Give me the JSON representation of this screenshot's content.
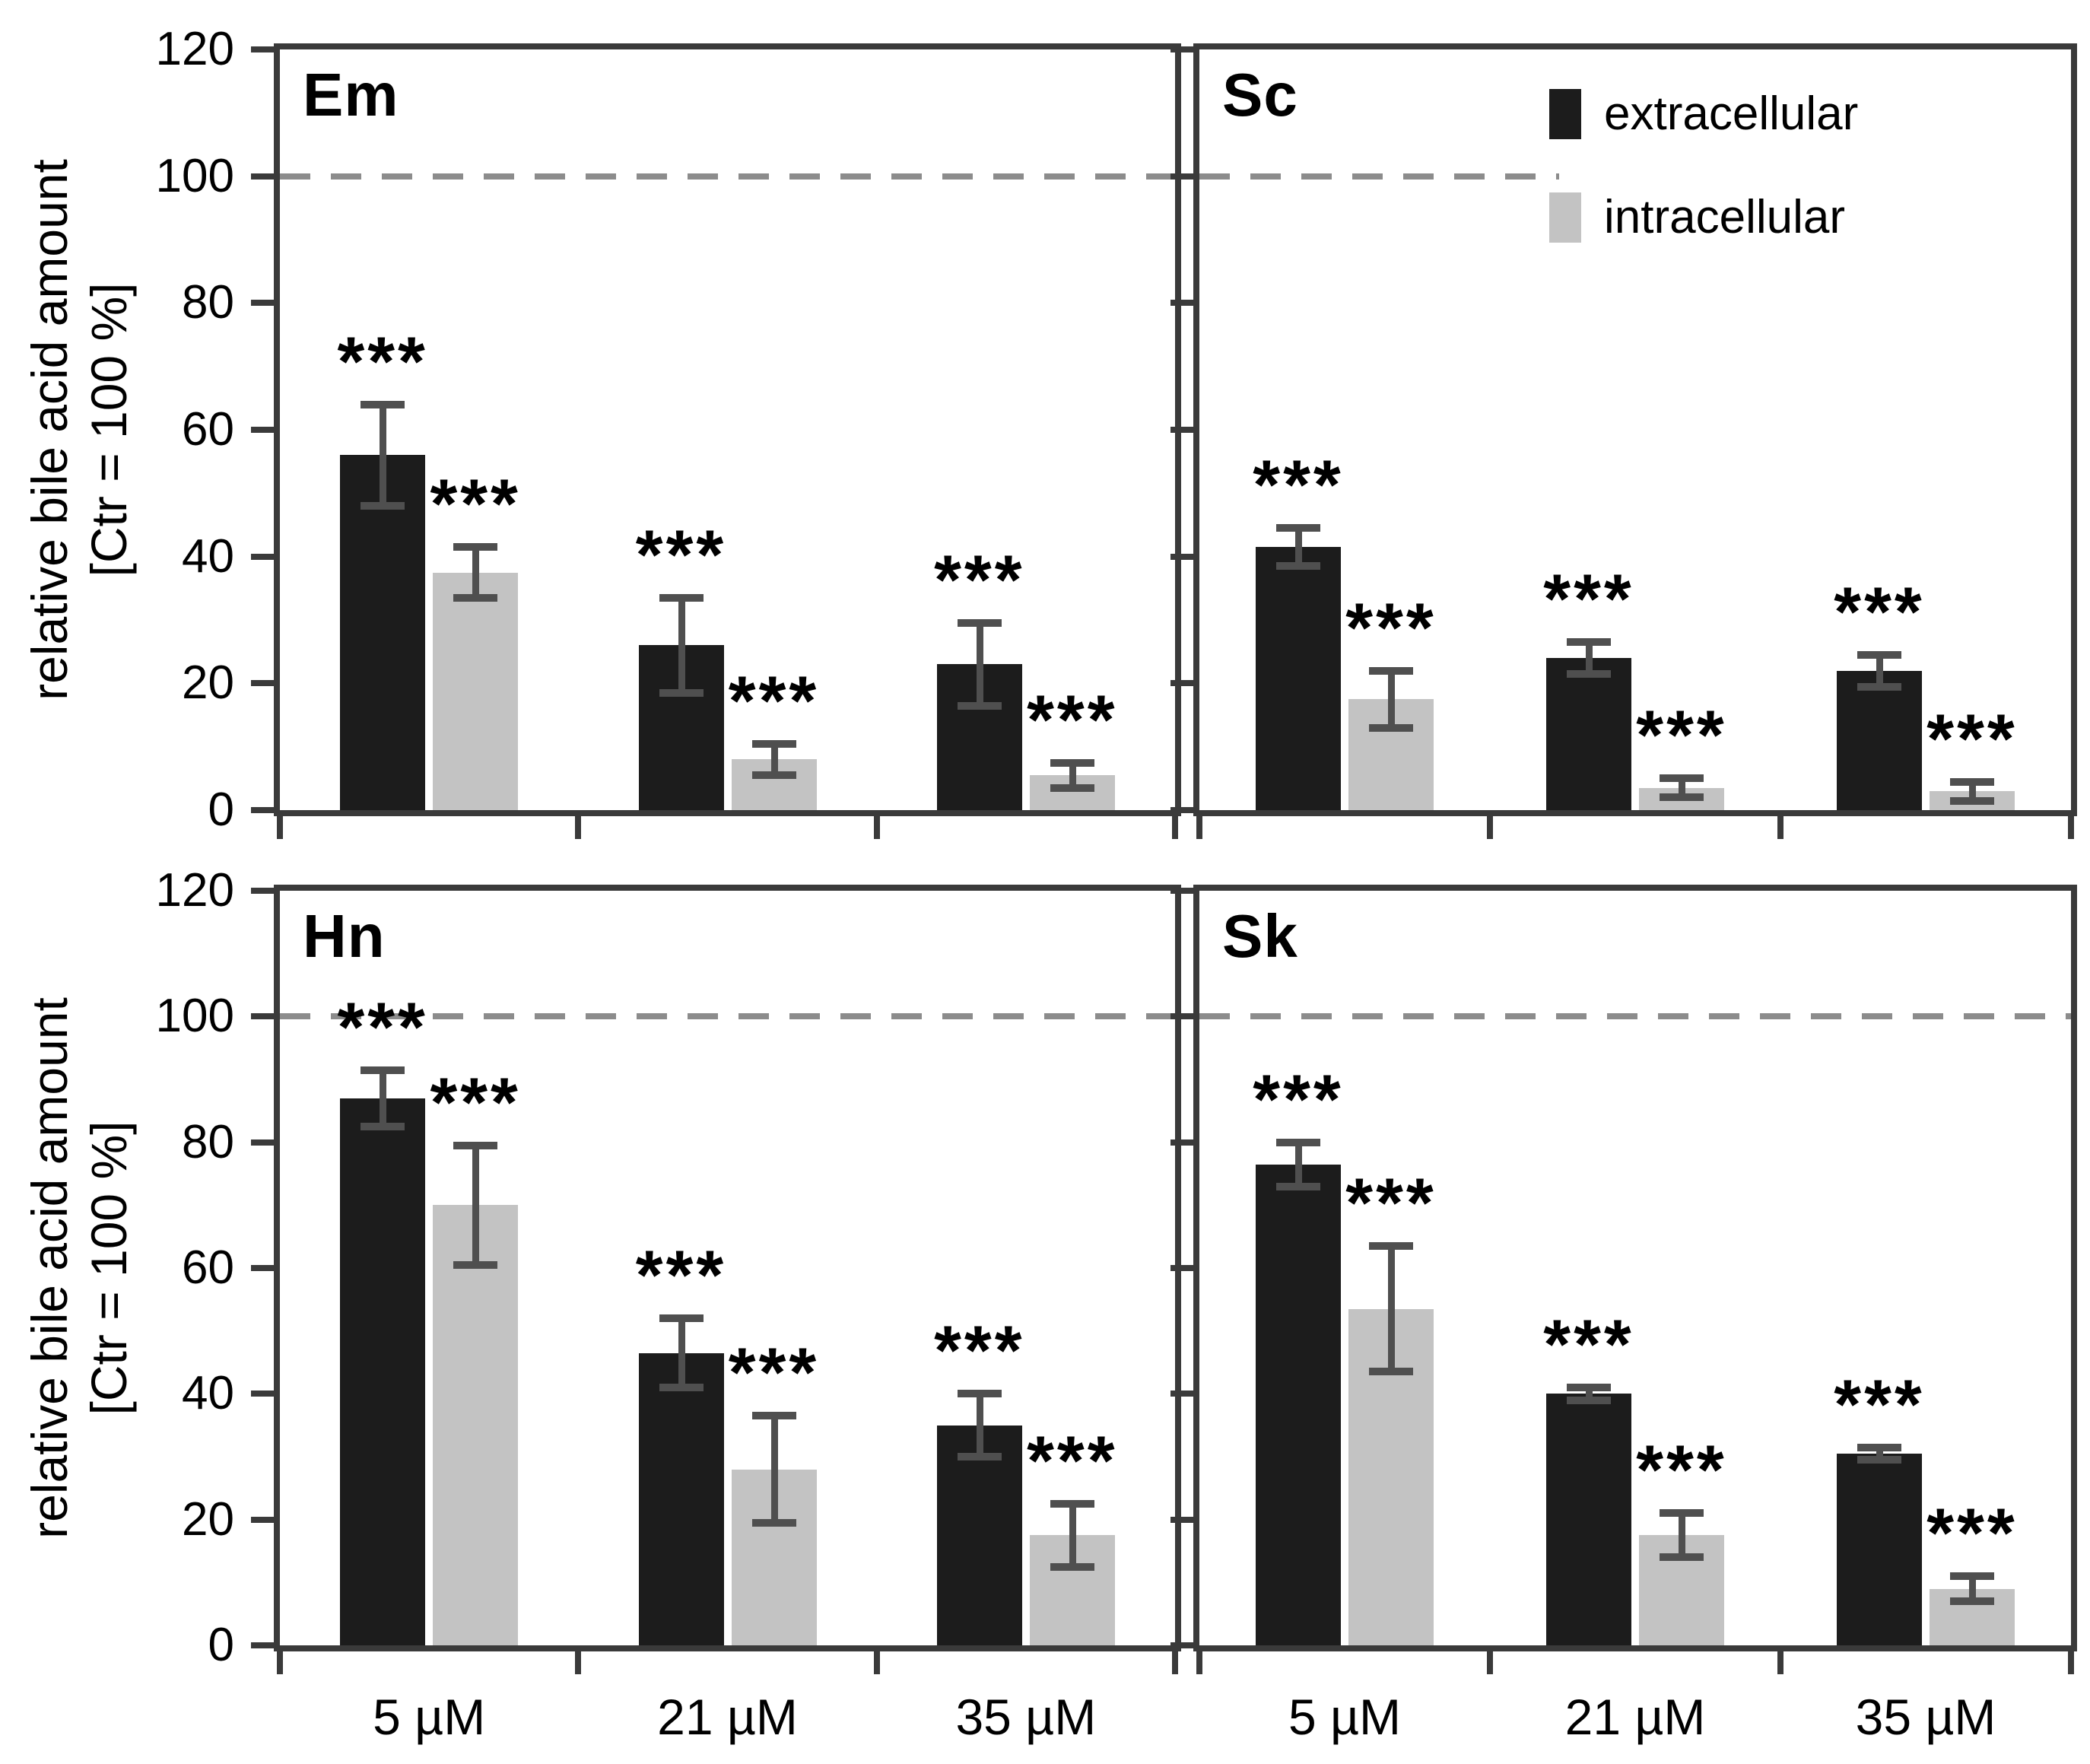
{
  "figure": {
    "y_axis_title_line1": "relative bile acid amount",
    "y_axis_title_line2": "[Ctr = 100 %]",
    "significance_marker": "***",
    "colors": {
      "extracellular_bar": "#1c1c1c",
      "intracellular_bar": "#c3c3c3",
      "axis": "#3a3a3a",
      "error_bar": "#4f4f4f",
      "reference_dash": "#8c8c8c"
    },
    "legend": {
      "entries": [
        {
          "label": "extracellular",
          "color": "#1c1c1c"
        },
        {
          "label": "intracellular",
          "color": "#c3c3c3"
        }
      ],
      "location": "top-right of Sc panel"
    }
  },
  "chart_data": [
    {
      "type": "bar",
      "panel_label": "Em",
      "position": "top-left",
      "ylabel": "relative bile acid amount [Ctr = 100 %]",
      "categories": [
        "5 µM",
        "21 µM",
        "35 µM"
      ],
      "series": [
        {
          "name": "extracellular",
          "values": [
            56,
            26,
            23
          ],
          "errors": [
            8,
            7.5,
            6.5
          ]
        },
        {
          "name": "intracellular",
          "values": [
            37.5,
            8,
            5.5
          ],
          "errors": [
            4,
            2.5,
            2
          ]
        }
      ],
      "significance_per_bar": "***",
      "ylim": [
        0,
        120
      ],
      "yticks": [
        0,
        20,
        40,
        60,
        80,
        100,
        120
      ],
      "reference_line_y": 100,
      "grid": false
    },
    {
      "type": "bar",
      "panel_label": "Sc",
      "position": "top-right",
      "ylabel": "",
      "categories": [
        "5 µM",
        "21 µM",
        "35 µM"
      ],
      "series": [
        {
          "name": "extracellular",
          "values": [
            41.5,
            24,
            22
          ],
          "errors": [
            3,
            2.5,
            2.5
          ]
        },
        {
          "name": "intracellular",
          "values": [
            17.5,
            3.5,
            3
          ],
          "errors": [
            4.5,
            1.5,
            1.5
          ]
        }
      ],
      "significance_per_bar": "***",
      "ylim": [
        0,
        120
      ],
      "yticks": [
        0,
        20,
        40,
        60,
        80,
        100,
        120
      ],
      "reference_line_y": 100,
      "grid": false
    },
    {
      "type": "bar",
      "panel_label": "Hn",
      "position": "bottom-left",
      "ylabel": "relative bile acid amount [Ctr = 100 %]",
      "categories": [
        "5 µM",
        "21 µM",
        "35 µM"
      ],
      "series": [
        {
          "name": "extracellular",
          "values": [
            87,
            46.5,
            35
          ],
          "errors": [
            4.5,
            5.5,
            5
          ]
        },
        {
          "name": "intracellular",
          "values": [
            70,
            28,
            17.5
          ],
          "errors": [
            9.5,
            8.5,
            5
          ]
        }
      ],
      "significance_per_bar": "***",
      "ylim": [
        0,
        120
      ],
      "yticks": [
        0,
        20,
        40,
        60,
        80,
        100,
        120
      ],
      "reference_line_y": 100,
      "grid": false
    },
    {
      "type": "bar",
      "panel_label": "Sk",
      "position": "bottom-right",
      "ylabel": "",
      "categories": [
        "5 µM",
        "21 µM",
        "35 µM"
      ],
      "series": [
        {
          "name": "extracellular",
          "values": [
            76.5,
            40,
            30.5
          ],
          "errors": [
            3.5,
            1,
            1
          ]
        },
        {
          "name": "intracellular",
          "values": [
            53.5,
            17.5,
            9
          ],
          "errors": [
            10,
            3.5,
            2
          ]
        }
      ],
      "significance_per_bar": "***",
      "ylim": [
        0,
        120
      ],
      "yticks": [
        0,
        20,
        40,
        60,
        80,
        100,
        120
      ],
      "reference_line_y": 100,
      "grid": false
    }
  ]
}
